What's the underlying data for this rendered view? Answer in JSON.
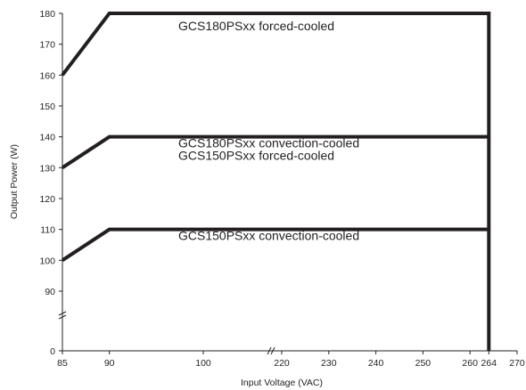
{
  "chart_data": {
    "type": "line",
    "xlabel": "Input Voltage (VAC)",
    "ylabel": "Output Power (W)",
    "x_ticks": [
      "85",
      "90",
      "100",
      "220",
      "230",
      "240",
      "250",
      "260",
      "264",
      "270"
    ],
    "y_ticks": [
      "0",
      "90",
      "100",
      "110",
      "120",
      "130",
      "140",
      "150",
      "160",
      "170",
      "180"
    ],
    "series": [
      {
        "x": [
          85,
          90,
          264,
          264
        ],
        "values": [
          160,
          180,
          180,
          0
        ]
      },
      {
        "x": [
          85,
          90,
          264
        ],
        "values": [
          130,
          140,
          140
        ]
      },
      {
        "x": [
          85,
          90,
          264
        ],
        "values": [
          100,
          110,
          110
        ]
      }
    ],
    "annotations": [
      {
        "text": "GCS180PSxx forced-cooled",
        "x": 100,
        "y": 176
      },
      {
        "text": "GCS180PSxx convection-cooled",
        "x": 100,
        "y": 138
      },
      {
        "text": "GCS150PSxx forced-cooled",
        "x": 100,
        "y": 134
      },
      {
        "text": "GCS150PSxx convection-cooled",
        "x": 100,
        "y": 108
      }
    ],
    "axis_breaks": {
      "x": "between 100 and 220",
      "y": "between 0 and 90"
    },
    "colors": {
      "line": "#231f20",
      "axis": "#231f20"
    }
  }
}
